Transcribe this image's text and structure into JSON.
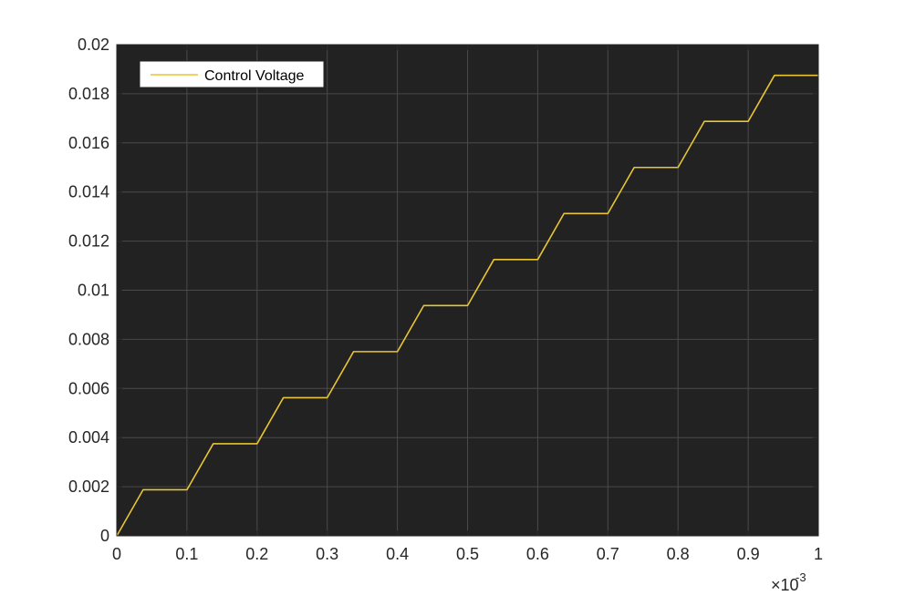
{
  "chart_data": {
    "type": "line",
    "title": "",
    "xlabel": "",
    "ylabel": "",
    "x_exponent_label": {
      "base": "×10",
      "power": "-3"
    },
    "xlim": [
      0,
      1
    ],
    "ylim": [
      0,
      0.02
    ],
    "x_ticks": [
      0,
      0.1,
      0.2,
      0.3,
      0.4,
      0.5,
      0.6,
      0.7,
      0.8,
      0.9,
      1
    ],
    "x_tick_labels": [
      "0",
      "0.1",
      "0.2",
      "0.3",
      "0.4",
      "0.5",
      "0.6",
      "0.7",
      "0.8",
      "0.9",
      "1"
    ],
    "y_ticks": [
      0,
      0.002,
      0.004,
      0.006,
      0.008,
      0.01,
      0.012,
      0.014,
      0.016,
      0.018,
      0.02
    ],
    "y_tick_labels": [
      "0",
      "0.002",
      "0.004",
      "0.006",
      "0.008",
      "0.01",
      "0.012",
      "0.014",
      "0.016",
      "0.018",
      "0.02"
    ],
    "grid": true,
    "legend": {
      "position": "top-left",
      "entries": [
        "Control Voltage"
      ]
    },
    "colors": {
      "plot_background": "#222222",
      "grid": "#4a4a4a",
      "axis": "#262626",
      "series": "#e8c532",
      "tick_text": "#262626",
      "legend_bg": "#ffffff",
      "legend_border": "#262626"
    },
    "series": [
      {
        "name": "Control Voltage",
        "x": [
          0,
          0.0375,
          0.1,
          0.1375,
          0.2,
          0.2375,
          0.3,
          0.3375,
          0.4,
          0.4375,
          0.5,
          0.5375,
          0.6,
          0.6375,
          0.7,
          0.7375,
          0.8,
          0.8375,
          0.9,
          0.9375,
          1
        ],
        "y": [
          0,
          0.001875,
          0.001875,
          0.00375,
          0.00375,
          0.005625,
          0.005625,
          0.0075,
          0.0075,
          0.009375,
          0.009375,
          0.01125,
          0.01125,
          0.013125,
          0.013125,
          0.015,
          0.015,
          0.016875,
          0.016875,
          0.01875,
          0.01875
        ]
      }
    ]
  }
}
